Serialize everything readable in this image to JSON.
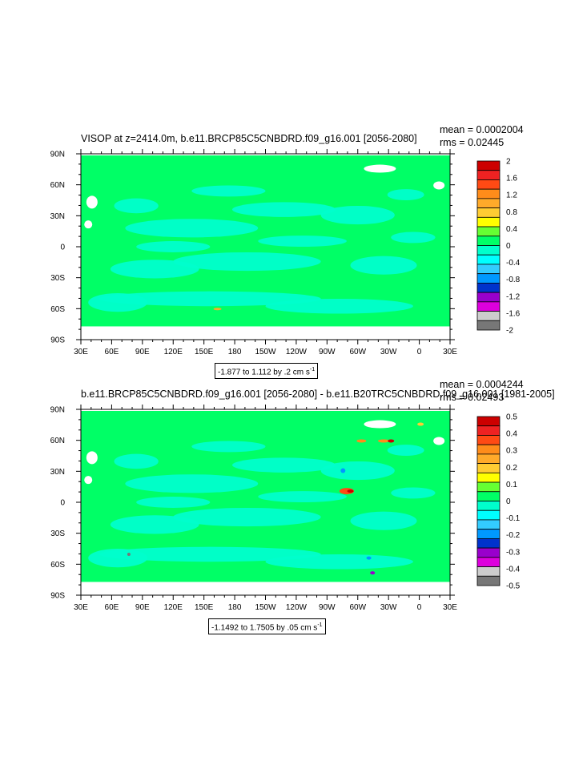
{
  "panels": [
    {
      "title": "VISOP at z=2414.0m, b.e11.BRCP85C5CNBDRD.f09_g16.001 [2056-2080]",
      "mean": "mean = 0.0002004",
      "rms": "rms = 0.02445",
      "range_text": "-1.877 to 1.112 by .2 cm s",
      "range_unit_exp": "-1"
    },
    {
      "title": "b.e11.BRCP85C5CNBDRD.f09_g16.001 [2056-2080] - b.e11.B20TRC5CNBDRD.f09_g16.001 [1981-2005]",
      "mean": "mean = 0.0004244",
      "rms": "rms = 0.02493",
      "range_text": "-1.1492 to 1.7505 by .05 cm s",
      "range_unit_exp": "-1"
    }
  ],
  "chart_data": [
    {
      "type": "heatmap",
      "title": "VISOP at z=2414.0m, b.e11.BRCP85C5CNBDRD.f09_g16.001 [2056-2080]",
      "x_ticks": [
        "30E",
        "60E",
        "90E",
        "120E",
        "150E",
        "180",
        "150W",
        "120W",
        "90W",
        "60W",
        "30W",
        "0",
        "30E"
      ],
      "y_ticks": [
        "90N",
        "60N",
        "30N",
        "0",
        "30S",
        "60S",
        "90S"
      ],
      "colorbar_labels": [
        "2",
        "1.6",
        "1.2",
        "0.8",
        "0.4",
        "0",
        "-0.4",
        "-0.8",
        "-1.2",
        "-1.6",
        "-2"
      ],
      "colorbar_colors": [
        "#cc0000",
        "#ee2222",
        "#ff4a14",
        "#ff8c1a",
        "#ffaa2a",
        "#ffcc33",
        "#ffff00",
        "#66ff33",
        "#00ff66",
        "#00ffcc",
        "#00ffff",
        "#33ccff",
        "#0099ff",
        "#0033cc",
        "#9900cc",
        "#dd00dd",
        "#cccccc",
        "#777777"
      ],
      "dominant_colors": {
        "near_zero_positive": "#00ff66",
        "near_zero_negative": "#00ffcc"
      },
      "data_range": [
        -1.877,
        1.112
      ],
      "contour_interval": 0.2
    },
    {
      "type": "heatmap",
      "title": "b.e11.BRCP85C5CNBDRD.f09_g16.001 [2056-2080] - b.e11.B20TRC5CNBDRD.f09_g16.001 [1981-2005]",
      "x_ticks": [
        "30E",
        "60E",
        "90E",
        "120E",
        "150E",
        "180",
        "150W",
        "120W",
        "90W",
        "60W",
        "30W",
        "0",
        "30E"
      ],
      "y_ticks": [
        "90N",
        "60N",
        "30N",
        "0",
        "30S",
        "60S",
        "90S"
      ],
      "colorbar_labels": [
        "0.5",
        "0.4",
        "0.3",
        "0.2",
        "0.1",
        "0",
        "-0.1",
        "-0.2",
        "-0.3",
        "-0.4",
        "-0.5"
      ],
      "colorbar_colors": [
        "#cc0000",
        "#ee2222",
        "#ff4a14",
        "#ff8c1a",
        "#ffaa2a",
        "#ffcc33",
        "#ffff00",
        "#66ff33",
        "#00ff66",
        "#00ffcc",
        "#00ffff",
        "#33ccff",
        "#0099ff",
        "#0033cc",
        "#9900cc",
        "#dd00dd",
        "#cccccc",
        "#777777"
      ],
      "dominant_colors": {
        "near_zero_positive": "#00ff66",
        "near_zero_negative": "#00ffcc"
      },
      "data_range": [
        -1.1492,
        1.7505
      ],
      "contour_interval": 0.05
    }
  ]
}
